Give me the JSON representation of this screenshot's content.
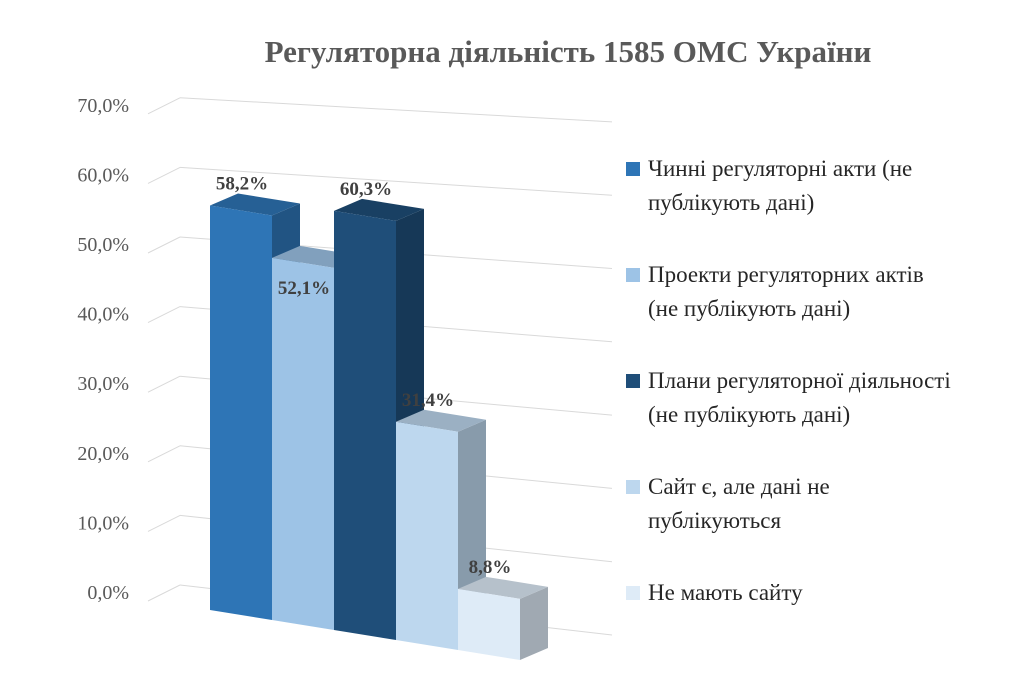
{
  "chart_data": {
    "type": "bar",
    "title": "Регуляторна діяльність 1585 ОМС України",
    "ylim": [
      0,
      70
    ],
    "yticks": [
      "0,0%",
      "10,0%",
      "20,0%",
      "30,0%",
      "40,0%",
      "50,0%",
      "60,0%",
      "70,0%"
    ],
    "grid": true,
    "legend_position": "right",
    "series": [
      {
        "name": "Чинні регуляторні акти (не публікують дані)",
        "value": 58.2,
        "label": "58,2%",
        "color": "#2E75B6"
      },
      {
        "name": "Проекти регуляторних актів (не публікують дані)",
        "value": 52.1,
        "label": "52,1%",
        "color": "#9DC3E6"
      },
      {
        "name": "Плани регуляторної діяльності (не публікують дані)",
        "value": 60.3,
        "label": "60,3%",
        "color": "#1F4E79"
      },
      {
        "name": "Сайт є, але дані не публікуються",
        "value": 31.4,
        "label": "31,4%",
        "color": "#BDD7EE"
      },
      {
        "name": "Не мають сайту",
        "value": 8.8,
        "label": "8,8%",
        "color": "#DEEBF7"
      }
    ],
    "legend": [
      {
        "lines": [
          "Чинні регуляторні акти (не",
          "публікують дані)"
        ],
        "color": "#2E75B6"
      },
      {
        "lines": [
          "Проекти регуляторних актів",
          "(не публікують дані)"
        ],
        "color": "#9DC3E6"
      },
      {
        "lines": [
          "Плани регуляторної діяльності",
          "(не публікують дані)"
        ],
        "color": "#1F4E79"
      },
      {
        "lines": [
          "Сайт є, але дані не",
          "публікуються"
        ],
        "color": "#BDD7EE"
      },
      {
        "lines": [
          "Не мають сайту"
        ],
        "color": "#DEEBF7"
      }
    ]
  }
}
